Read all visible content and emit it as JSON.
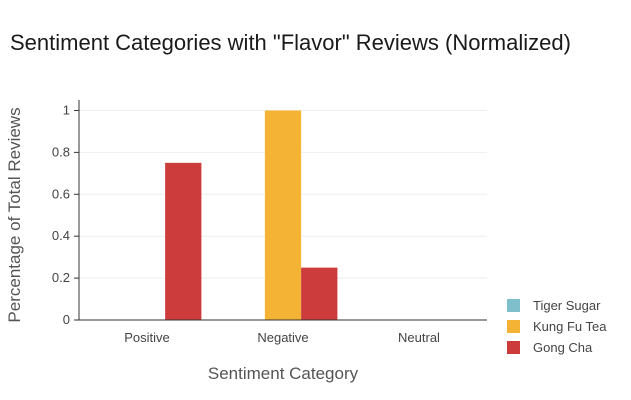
{
  "chart_data": {
    "type": "bar",
    "title": "Sentiment Categories with \"Flavor\" Reviews (Normalized)",
    "xlabel": "Sentiment Category",
    "ylabel": "Percentage of Total Reviews",
    "categories": [
      "Positive",
      "Negative",
      "Neutral"
    ],
    "ylim": [
      0,
      1.05
    ],
    "yticks": [
      "0",
      "0.2",
      "0.4",
      "0.6",
      "0.8",
      "1"
    ],
    "grid": true,
    "legend_position": "bottom-right",
    "series": [
      {
        "name": "Tiger Sugar",
        "color": "#7fbfcc",
        "values": [
          0,
          0,
          0
        ]
      },
      {
        "name": "Kung Fu Tea",
        "color": "#f4b334",
        "values": [
          0,
          1.0,
          0
        ]
      },
      {
        "name": "Gong Cha",
        "color": "#cc3c3c",
        "values": [
          0.75,
          0.25,
          0
        ]
      }
    ]
  }
}
